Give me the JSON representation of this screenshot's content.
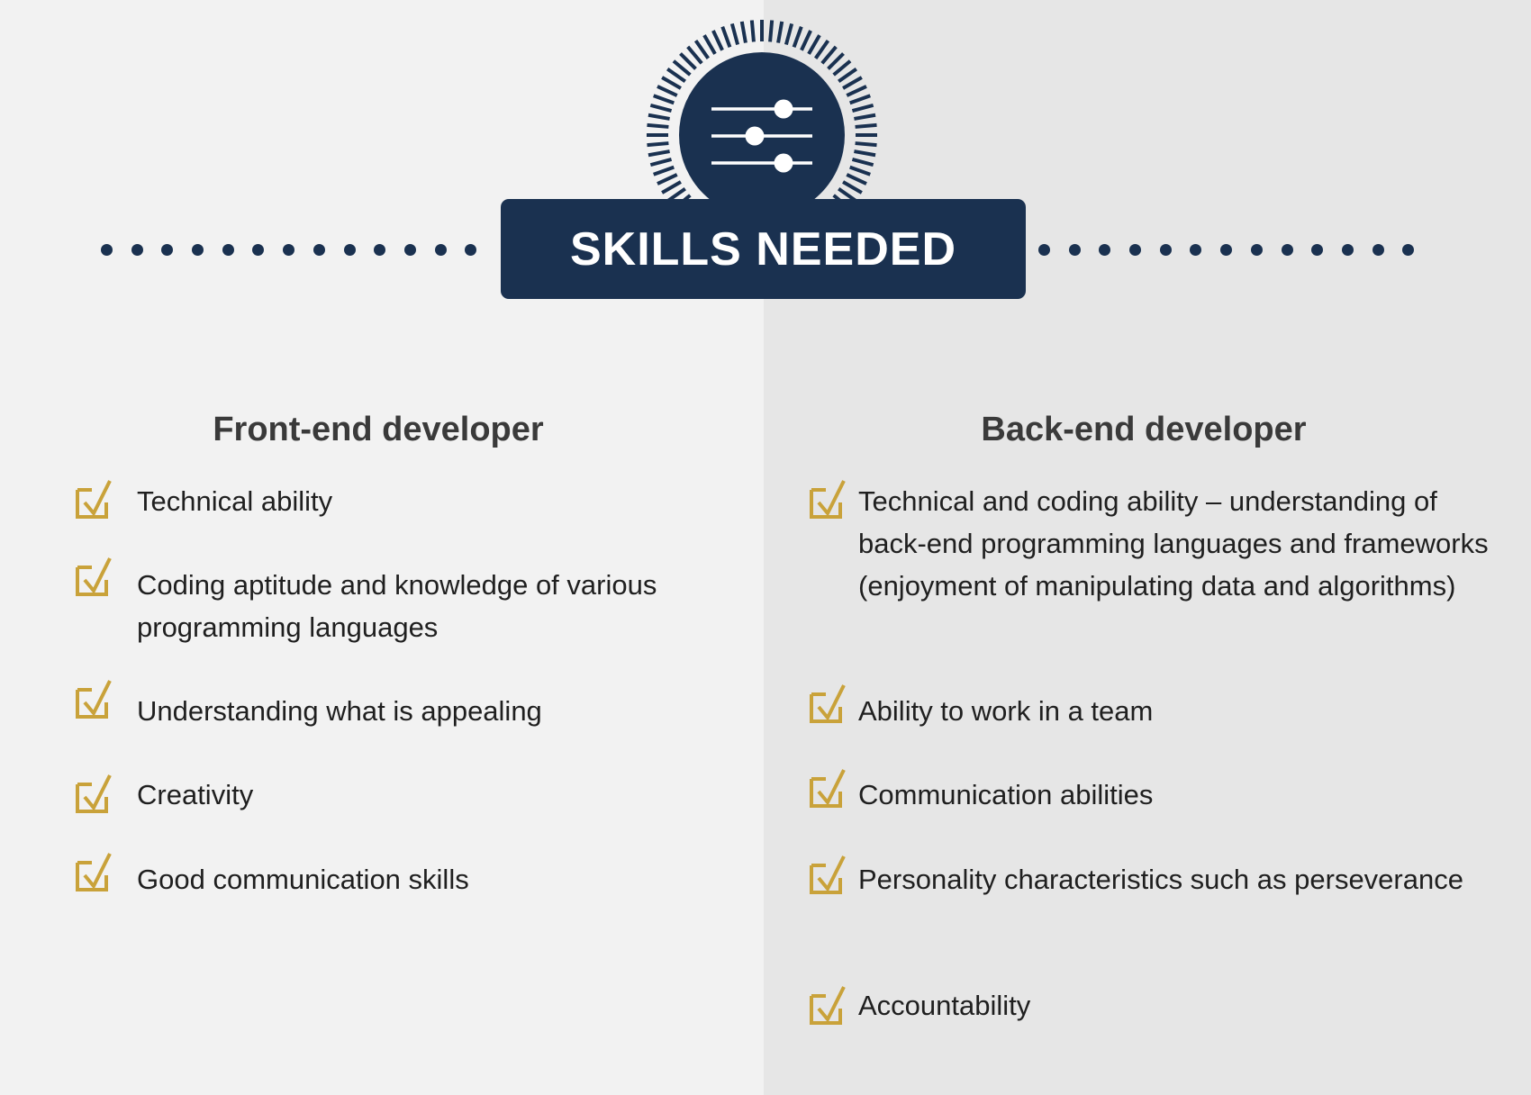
{
  "title": "SKILLS NEEDED",
  "colors": {
    "navy": "#1a3150",
    "gold": "#c9a23a",
    "panel_left": "#f2f2f2",
    "panel_right": "#e6e6e6"
  },
  "emblem_icon": "sliders-icon",
  "check_icon": "checkbox-checked-icon",
  "columns": {
    "frontend": {
      "heading": "Front-end developer",
      "items": [
        "Technical ability",
        "Coding aptitude and knowledge of various programming languages",
        "Understanding what is appealing",
        "Creativity",
        "Good communication skills"
      ]
    },
    "backend": {
      "heading": "Back-end developer",
      "items": [
        "Technical and coding ability – understanding of back-end programming languages and frameworks (enjoyment of manipulating data and algorithms)",
        "Ability to work in a team",
        "Communication abilities",
        "Personality characteristics such as perseverance",
        "Accountability"
      ]
    }
  }
}
